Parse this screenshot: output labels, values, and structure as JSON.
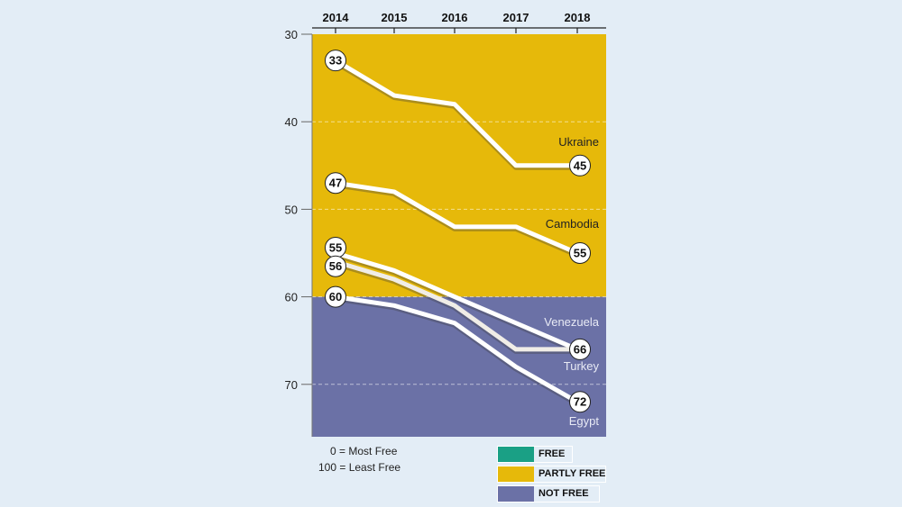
{
  "chart_data": {
    "type": "line",
    "x": [
      "2014",
      "2015",
      "2016",
      "2017",
      "2018"
    ],
    "yticks": [
      30,
      40,
      50,
      60,
      70
    ],
    "ylim": [
      30,
      76
    ],
    "y_inverted": true,
    "bands": [
      {
        "label": "PARTLY FREE",
        "from": 30,
        "to": 60,
        "color": "#e6b90a"
      },
      {
        "label": "NOT FREE",
        "from": 60,
        "to": 76,
        "color": "#6b71a6"
      }
    ],
    "series": [
      {
        "name": "Ukraine",
        "values": [
          33,
          37,
          38,
          45,
          45
        ],
        "start_label": "33",
        "end_label": "45"
      },
      {
        "name": "Cambodia",
        "values": [
          47,
          48,
          52,
          52,
          55
        ],
        "start_label": "47",
        "end_label": "55"
      },
      {
        "name": "Venezuela",
        "values": [
          55,
          57,
          60,
          63,
          66
        ],
        "start_label": "55",
        "end_label": "66"
      },
      {
        "name": "Turkey",
        "values": [
          56,
          58,
          61,
          66,
          66
        ],
        "start_label": "56",
        "end_label": ""
      },
      {
        "name": "Egypt",
        "values": [
          60,
          61,
          63,
          68,
          72
        ],
        "start_label": "60",
        "end_label": "72"
      }
    ],
    "gridlines": true
  },
  "notes": {
    "line1": "0 = Most Free",
    "line2": "100 = Least Free"
  },
  "legend": [
    {
      "label": "FREE",
      "color": "#1aa085"
    },
    {
      "label": "PARTLY FREE",
      "color": "#e6b90a"
    },
    {
      "label": "NOT FREE",
      "color": "#6b71a6"
    }
  ]
}
